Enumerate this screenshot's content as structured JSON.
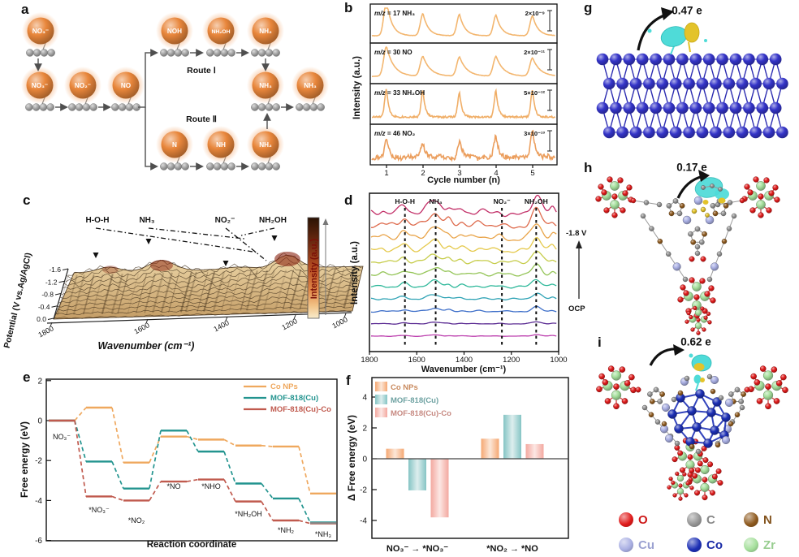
{
  "panels": {
    "a": {
      "label": "a",
      "route1_label": "Route Ⅰ",
      "route2_label": "Route Ⅱ",
      "species": {
        "start": "NO₃⁻",
        "chain": [
          "NO₃⁻",
          "NO₂⁻",
          "NO"
        ],
        "route1": [
          "NOH",
          "NH₂OH",
          "NH₂"
        ],
        "route2": [
          "N",
          "NH",
          "NH₂"
        ],
        "merged": "NH₃",
        "released": "NH₃"
      }
    },
    "b": {
      "label": "b"
    },
    "c": {
      "label": "c"
    },
    "d": {
      "label": "d"
    },
    "e": {
      "label": "e"
    },
    "f": {
      "label": "f"
    },
    "g": {
      "label": "g",
      "charge": "0.47 e",
      "structure": "Co NPs slab"
    },
    "h": {
      "label": "h",
      "charge": "0.17 e",
      "structure": "MOF-818(Cu)"
    },
    "i": {
      "label": "i",
      "charge": "0.62 e",
      "structure": "MOF-818(Cu)-Co"
    }
  },
  "atom_legend": [
    {
      "symbol": "O",
      "color": "#E01B1B"
    },
    {
      "symbol": "C",
      "color": "#949494"
    },
    {
      "symbol": "N",
      "color": "#8E5A1F"
    },
    {
      "symbol": "Cu",
      "color": "#A9AFE3"
    },
    {
      "symbol": "Co",
      "color": "#1C2FB5"
    },
    {
      "symbol": "Zr",
      "color": "#A5DF9C"
    }
  ],
  "chart_data": [
    {
      "panel": "b",
      "type": "line",
      "xlabel": "Cycle number (n)",
      "ylabel": "Intensity (a.u.)",
      "x_ticks": [
        1,
        2,
        3,
        4,
        5
      ],
      "traces": [
        {
          "label": "m/z = 17  NH₃",
          "scale_bar": "2×10⁻⁹",
          "color": "#F3B66F",
          "peak_heights": [
            1.0,
            0.62,
            0.6,
            0.58,
            0.56
          ]
        },
        {
          "label": "m/z = 30 NO",
          "scale_bar": "2×10⁻¹¹",
          "color": "#F3B66F",
          "peak_heights": [
            0.9,
            0.6,
            0.58,
            0.6,
            0.55
          ]
        },
        {
          "label": "m/z = 33 NH₂OH",
          "scale_bar": "5×10⁻¹²",
          "color": "#F0AE67",
          "peak_heights": [
            0.85,
            0.82,
            0.75,
            0.8,
            0.82
          ]
        },
        {
          "label": "m/z = 46 NO₂",
          "scale_bar": "3×10⁻¹³",
          "color": "#EB9E5D",
          "peak_heights": [
            0.55,
            0.5,
            0.5,
            0.65,
            0.9
          ]
        }
      ]
    },
    {
      "panel": "c",
      "type": "3d-waterfall",
      "xlabel": "Wavenumber (cm⁻¹)",
      "ylabel": "Potential (V vs.Ag/AgCl)",
      "colorbar_label": "Intensity (a.u.)",
      "x_ticks": [
        1800,
        1600,
        1400,
        1200,
        1000
      ],
      "y_ticks": [
        "-1.6",
        "-1.2",
        "-0.8",
        "-0.4",
        "0.0"
      ],
      "annotations": [
        {
          "text": "H-O-H",
          "wavenumber": 1650
        },
        {
          "text": "NH₃",
          "wavenumber": 1520
        },
        {
          "text": "NO₂⁻",
          "wavenumber": 1250
        },
        {
          "text": "NH₂OH",
          "wavenumber": 1100
        }
      ]
    },
    {
      "panel": "d",
      "type": "line",
      "xlabel": "Wavenumber (cm⁻¹)",
      "ylabel": "Intensity (a.u.)",
      "x_range": [
        1800,
        1000
      ],
      "x_ticks": [
        1800,
        1600,
        1400,
        1200,
        1000
      ],
      "annotations": [
        {
          "text": "H-O-H",
          "wavenumber": 1650
        },
        {
          "text": "NH₃",
          "wavenumber": 1520
        },
        {
          "text": "NO₂⁻",
          "wavenumber": 1240
        },
        {
          "text": "NH₂OH",
          "wavenumber": 1095
        }
      ],
      "right_labels": {
        "top": "-1.8 V",
        "bottom": "OCP"
      },
      "n_spectra": 11,
      "series_colors": [
        "#BC3FAE",
        "#5B2C93",
        "#3E6FC9",
        "#2FA3B5",
        "#2EB89A",
        "#93C455",
        "#C6CC49",
        "#E5C94B",
        "#E9A449",
        "#DE6B4D",
        "#C22E67"
      ]
    },
    {
      "panel": "e",
      "type": "step-line",
      "xlabel": "Reaction coordinate",
      "ylabel": "Free energy (eV)",
      "ylim": [
        -6,
        2
      ],
      "y_ticks": [
        2,
        0,
        -2,
        -4,
        -6
      ],
      "states": [
        "NO₃⁻",
        "*NO₃⁻",
        "*NO₂",
        "*NO",
        "*NHO",
        "*NH₂OH",
        "*NH₂",
        "*NH₃"
      ],
      "series": [
        {
          "name": "Co NPs",
          "color": "#EFA85E",
          "values": [
            0,
            0.65,
            -2.1,
            -0.8,
            -0.95,
            -1.25,
            -1.3,
            -3.65
          ]
        },
        {
          "name": "MOF-818(Cu)",
          "color": "#23948F",
          "values": [
            0,
            -2.05,
            -3.4,
            -0.5,
            -1.55,
            -3.15,
            -3.9,
            -5.1
          ]
        },
        {
          "name": "MOF-818(Cu)-Co",
          "color": "#C05A4E",
          "values": [
            0,
            -3.8,
            -4.0,
            -3.05,
            -2.95,
            -4.05,
            -5.0,
            -5.15
          ]
        }
      ]
    },
    {
      "panel": "f",
      "type": "bar",
      "ylabel": "Δ Free energy (eV)",
      "ylim": [
        -5,
        5
      ],
      "y_ticks": [
        -4,
        -2,
        0,
        2,
        4
      ],
      "categories": [
        "NO₃⁻ → *NO₃⁻",
        "*NO₂ → *NO"
      ],
      "series": [
        {
          "name": "Co NPs",
          "color": "#F5A873",
          "values": [
            0.65,
            1.3
          ]
        },
        {
          "name": "MOF-818(Cu)",
          "color": "#85C4C4",
          "values": [
            -2.05,
            2.85
          ]
        },
        {
          "name": "MOF-818(Cu)-Co",
          "color": "#F3A89F",
          "values": [
            -3.8,
            0.95
          ]
        }
      ]
    }
  ]
}
